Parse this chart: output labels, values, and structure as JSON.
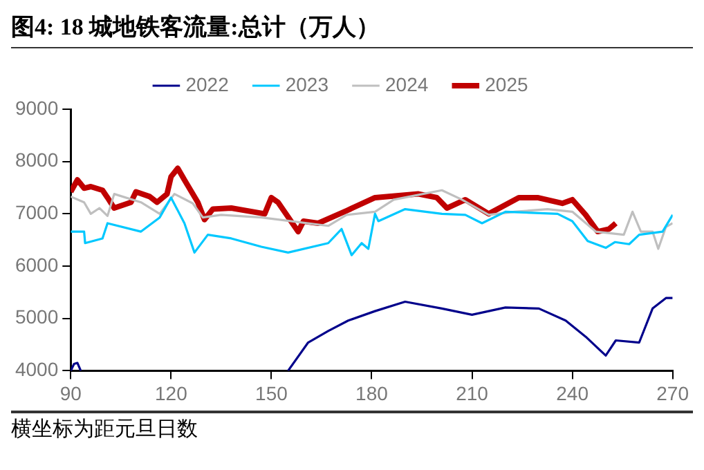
{
  "chart_data": {
    "type": "line",
    "title": "图4:  18 城地铁客流量:总计（万人）",
    "annotations": [
      "横坐标为距元旦日数"
    ],
    "xlim": [
      90,
      270
    ],
    "xticks": [
      90,
      120,
      150,
      180,
      210,
      240,
      270
    ],
    "ylim": [
      4000,
      9000
    ],
    "yticks": [
      4000,
      5000,
      6000,
      7000,
      8000,
      9000
    ],
    "legend": "top",
    "marker": "none",
    "line_style": "solid",
    "series": [
      {
        "name": "2022",
        "color": "#00008b",
        "x": [
          90,
          91,
          92,
          93,
          94,
          155,
          161,
          167,
          173,
          181,
          190,
          201,
          210,
          220,
          230,
          238,
          244,
          250,
          253,
          260,
          264,
          268,
          270
        ],
        "values": [
          4000,
          4130,
          4150,
          4000,
          null,
          4000,
          4540,
          4760,
          4960,
          5140,
          5320,
          5190,
          5070,
          5210,
          5190,
          4960,
          4650,
          4290,
          4580,
          4540,
          5190,
          5390,
          5390
        ]
      },
      {
        "name": "2023",
        "color": "#00c8ff",
        "x": [
          90,
          94,
          94.3,
          99.5,
          101,
          111,
          116.6,
          120,
          124,
          127,
          131,
          138,
          147,
          155,
          167,
          171,
          174,
          177,
          179,
          181,
          182,
          190,
          201,
          208,
          213,
          220,
          235.6,
          240,
          244.6,
          250,
          252.8,
          257,
          260,
          267,
          270
        ],
        "values": [
          6660,
          6660,
          6440,
          6530,
          6820,
          6660,
          6930,
          7310,
          6820,
          6260,
          6600,
          6530,
          6370,
          6260,
          6440,
          6710,
          6210,
          6440,
          6330,
          7000,
          6860,
          7090,
          7000,
          6980,
          6820,
          7040,
          7000,
          6860,
          6480,
          6350,
          6460,
          6420,
          6600,
          6660,
          6980
        ]
      },
      {
        "name": "2024",
        "color": "#bfbfbf",
        "x": [
          90,
          94,
          96,
          98.6,
          101,
          103,
          111,
          116.6,
          121,
          126.5,
          129.5,
          135,
          147,
          152,
          167,
          172.5,
          181,
          186.6,
          201,
          207,
          215,
          222.7,
          232.6,
          240,
          247,
          255.4,
          258,
          260.5,
          264,
          265.7,
          268,
          270
        ],
        "values": [
          7330,
          7220,
          7000,
          7110,
          6960,
          7380,
          7220,
          7000,
          7380,
          7200,
          6930,
          6980,
          6930,
          6890,
          6770,
          6980,
          7040,
          7270,
          7450,
          7270,
          6980,
          7040,
          7090,
          7040,
          6660,
          6600,
          7040,
          6660,
          6660,
          6330,
          6750,
          6820
        ]
      },
      {
        "name": "2025",
        "color": "#c00000",
        "x": [
          90,
          92,
          94,
          96,
          99.5,
          101,
          103,
          108,
          109.5,
          113.6,
          115.8,
          118.8,
          120,
          122,
          124,
          128,
          130,
          132.5,
          138,
          148,
          150,
          152,
          158,
          159.6,
          164,
          172.5,
          181,
          194,
          199.5,
          202.5,
          208,
          215,
          224,
          229.6,
          237,
          240,
          244,
          247.6,
          251,
          253
        ],
        "values": [
          7420,
          7650,
          7490,
          7520,
          7450,
          7310,
          7110,
          7220,
          7420,
          7330,
          7220,
          7380,
          7710,
          7870,
          7650,
          7220,
          6890,
          7090,
          7110,
          7000,
          7310,
          7220,
          6660,
          6860,
          6820,
          7060,
          7310,
          7380,
          7310,
          7110,
          7270,
          7000,
          7310,
          7310,
          7200,
          7270,
          6980,
          6660,
          6710,
          6820
        ]
      }
    ]
  }
}
